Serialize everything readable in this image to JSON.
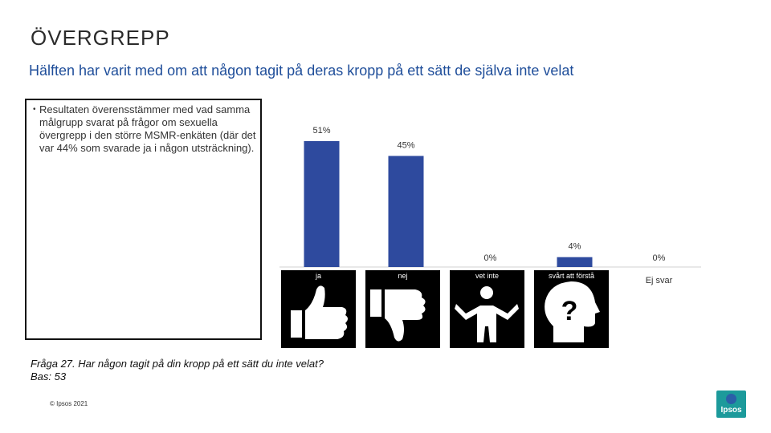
{
  "slide": {
    "title": "ÖVERGREPP",
    "subtitle": "Hälften har varit med om att någon tagit på deras kropp på ett sätt de själva inte velat",
    "bullet": "Resultaten överensstämmer med vad samma målgrupp svarat på frågor om sexuella övergrepp i den större MSMR-enkäten (där det var 44% som svarade ja i någon utsträckning).",
    "question": "Fråga 27. Har någon tagit på din kropp på ett sätt du inte velat?",
    "base": "Bas: 53",
    "copyright": "© Ipsos 2021",
    "logo_text": "Ipsos"
  },
  "icons": [
    {
      "label": "ja",
      "icon": "thumbs-up-icon"
    },
    {
      "label": "nej",
      "icon": "thumbs-down-icon"
    },
    {
      "label": "vet inte",
      "icon": "shrug-person-icon"
    },
    {
      "label": "svårt att förstå",
      "icon": "head-question-icon"
    }
  ],
  "chart_data": {
    "type": "bar",
    "categories": [
      "ja",
      "nej",
      "vet inte",
      "svårt att förstå",
      "Ej svar"
    ],
    "values": [
      51,
      45,
      0,
      4,
      0
    ],
    "data_labels": [
      "51%",
      "45%",
      "0%",
      "4%",
      "0%"
    ],
    "ylim": [
      0,
      51
    ],
    "bar_color": "#2e4a9e",
    "grid": false
  }
}
